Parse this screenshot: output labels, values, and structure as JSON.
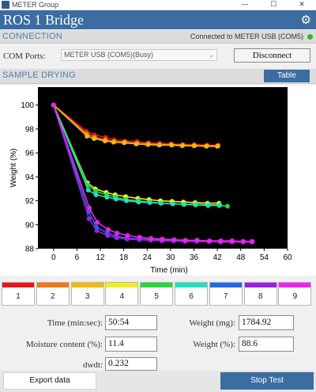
{
  "window": {
    "title": "METER Group",
    "controls": {
      "minimize": "—",
      "maximize": "☐",
      "close": "✕"
    }
  },
  "app": {
    "title": "ROS 1 Bridge",
    "settings_icon": "gear-icon"
  },
  "connection": {
    "section_title": "CONNECTION",
    "status": "Connected to METER USB (COM5)",
    "status_color": "#22c02a",
    "com_label": "COM Ports:",
    "com_selected": "METER USB (COM5)(Busy)",
    "disconnect_label": "Disconnect"
  },
  "sample_drying": {
    "section_title": "SAMPLE DRYING",
    "table_label": "Table"
  },
  "chart_data": {
    "type": "line",
    "background": "#000000",
    "xlabel": "Time (min)",
    "ylabel": "Weight (%)",
    "xlim": [
      -4,
      60
    ],
    "ylim": [
      88,
      101.5
    ],
    "xticks": [
      0,
      6,
      12,
      18,
      24,
      30,
      36,
      42,
      48,
      54,
      60
    ],
    "yticks": [
      88,
      90,
      92,
      94,
      96,
      98,
      100
    ],
    "grid": false,
    "series": [
      {
        "color": "#e8141d",
        "x": [
          0,
          8.4,
          10.5,
          13.4,
          15.5,
          18.2,
          21.4,
          24.3,
          27.2,
          30.2,
          33.1,
          36.1,
          39.4,
          42.2
        ],
        "y": [
          100,
          97.8,
          97.5,
          97.3,
          97.1,
          97.0,
          96.95,
          96.85,
          96.8,
          96.75,
          96.7,
          96.7,
          96.65,
          96.65
        ]
      },
      {
        "color": "#f07a10",
        "x": [
          0,
          8.5,
          10.6,
          13.3,
          15.6,
          18.4,
          21.5,
          24.4,
          27.3,
          30.1,
          33.2,
          36.2,
          39.3,
          42.2
        ],
        "y": [
          100,
          97.6,
          97.3,
          97.1,
          96.95,
          96.9,
          96.8,
          96.75,
          96.7,
          96.7,
          96.65,
          96.6,
          96.6,
          96.6
        ]
      },
      {
        "color": "#f5b80c",
        "x": [
          0,
          8.6,
          10.4,
          13.2,
          15.4,
          18.1,
          21.2,
          24.2,
          27.1,
          30.3,
          33.0,
          36.0,
          39.2,
          42.0
        ],
        "y": [
          100,
          97.4,
          97.2,
          97.0,
          96.9,
          96.85,
          96.75,
          96.7,
          96.65,
          96.65,
          96.6,
          96.6,
          96.55,
          96.55
        ]
      },
      {
        "color": "#f0f020",
        "x": [
          0,
          8.7,
          10.7,
          13.5,
          15.8,
          18.5,
          21.6,
          24.5,
          27.4,
          30.4,
          33.3,
          36.3,
          39.5,
          42.4
        ],
        "y": [
          100,
          93.5,
          93.0,
          92.7,
          92.5,
          92.35,
          92.2,
          92.1,
          92.0,
          91.95,
          91.9,
          91.85,
          91.8,
          91.8
        ]
      },
      {
        "color": "#28d83a",
        "x": [
          0,
          8.8,
          10.8,
          13.6,
          15.9,
          18.6,
          21.7,
          24.6,
          27.5,
          30.5,
          33.4,
          36.4,
          39.6,
          42.5,
          44.6
        ],
        "y": [
          100,
          93.3,
          92.8,
          92.5,
          92.3,
          92.1,
          92.0,
          91.9,
          91.8,
          91.75,
          91.7,
          91.65,
          91.6,
          91.6,
          91.55
        ]
      },
      {
        "color": "#20e0c0",
        "x": [
          0,
          8.9,
          10.9,
          13.7,
          16.0,
          18.7,
          21.8,
          24.7,
          27.6,
          30.6,
          33.5,
          36.5,
          39.7,
          42.6
        ],
        "y": [
          100,
          92.9,
          92.5,
          92.3,
          92.15,
          92.0,
          91.9,
          91.85,
          91.8,
          91.75,
          91.7,
          91.7,
          91.65,
          91.65
        ]
      },
      {
        "color": "#1f6ae8",
        "x": [
          0,
          9.0,
          11.0,
          13.8,
          16.1,
          18.8,
          21.9,
          24.8,
          27.7,
          30.7,
          33.6,
          36.6,
          39.8,
          42.7,
          45.6,
          48.5,
          51.0
        ],
        "y": [
          100,
          91.1,
          89.8,
          89.3,
          89.05,
          88.9,
          88.8,
          88.75,
          88.7,
          88.7,
          88.65,
          88.65,
          88.6,
          88.6,
          88.6,
          88.6,
          88.6
        ]
      },
      {
        "color": "#9a20e0",
        "x": [
          0,
          9.1,
          11.1,
          13.9,
          16.2,
          18.9,
          22.0,
          24.9,
          27.8,
          30.8,
          33.7,
          36.7,
          39.9,
          42.8,
          45.7,
          48.6,
          50.9
        ],
        "y": [
          100,
          90.5,
          89.5,
          89.1,
          88.9,
          88.8,
          88.75,
          88.7,
          88.65,
          88.65,
          88.6,
          88.6,
          88.6,
          88.55,
          88.55,
          88.55,
          88.55
        ]
      },
      {
        "color": "#f020f0",
        "x": [
          0,
          9.2,
          11.2,
          14.0,
          16.3,
          19.0,
          22.1,
          25.0,
          27.9,
          30.9,
          33.8,
          36.8,
          40.0,
          42.9,
          45.8,
          48.7,
          50.9
        ],
        "y": [
          100,
          91.4,
          90.2,
          89.6,
          89.3,
          89.1,
          88.95,
          88.85,
          88.8,
          88.75,
          88.7,
          88.7,
          88.65,
          88.65,
          88.65,
          88.6,
          88.6
        ]
      }
    ]
  },
  "swatches": [
    {
      "label": "1",
      "color": "#e8141d"
    },
    {
      "label": "2",
      "color": "#f07a10"
    },
    {
      "label": "3",
      "color": "#f5b80c"
    },
    {
      "label": "4",
      "color": "#f0f020"
    },
    {
      "label": "5",
      "color": "#28d83a"
    },
    {
      "label": "6",
      "color": "#20e0c0"
    },
    {
      "label": "7",
      "color": "#1f6ae8"
    },
    {
      "label": "8",
      "color": "#9a20e0"
    },
    {
      "label": "9",
      "color": "#f020f0"
    }
  ],
  "readouts": {
    "time_label": "Time (min:sec):",
    "time_value": "50:54",
    "weight_mg_label": "Weight (mg):",
    "weight_mg_value": "1784.92",
    "moisture_label": "Moisture content (%):",
    "moisture_value": "11.4",
    "weight_pct_label": "Weight (%):",
    "weight_pct_value": "88.6",
    "dwdt_label": "dwdt:",
    "dwdt_value": "0.232"
  },
  "actions": {
    "export_label": "Export data",
    "stop_label": "Stop Test"
  }
}
